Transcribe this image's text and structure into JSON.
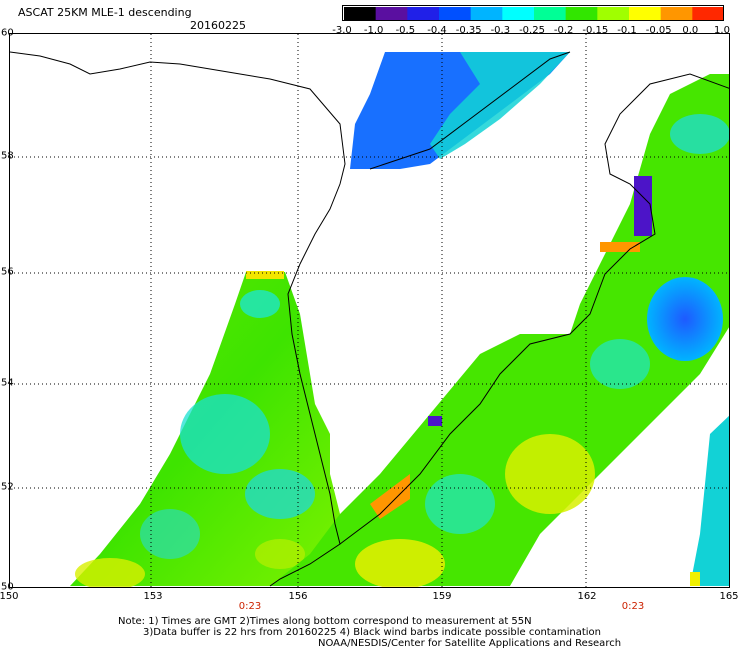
{
  "header": {
    "title": "ASCAT 25KM MLE-1 descending",
    "date": "20160225"
  },
  "colorbar": {
    "labels": [
      "-3.0",
      "-1.0",
      "-0.5",
      "-0.4",
      "-0.35",
      "-0.3",
      "-0.25",
      "-0.2",
      "-0.15",
      "-0.1",
      "-0.05",
      "0.0",
      "1.0"
    ],
    "colors": [
      "#000000",
      "#5a0fa0",
      "#2020e8",
      "#0050ff",
      "#00b4ff",
      "#00ffff",
      "#00ff96",
      "#32e600",
      "#a0ff00",
      "#ffff00",
      "#ff9600",
      "#ff2800"
    ]
  },
  "map": {
    "y_labels": [
      "60",
      "58",
      "56",
      "54",
      "52",
      "50"
    ],
    "x_labels": [
      "150",
      "153",
      "156",
      "159",
      "162",
      "165"
    ],
    "time_labels": [
      "0:23",
      "0:23"
    ],
    "lat_range": [
      50,
      60
    ],
    "lon_range": [
      150,
      165
    ],
    "colors": {
      "land_outline": "#000000",
      "grid": "#000000"
    }
  },
  "notes": {
    "line1": "Note: 1) Times are GMT 2)Times along bottom correspond to measurement at 55N",
    "line2": "3)Data buffer is 22 hrs from 20160225 4) Black wind barbs indicate possible contamination",
    "line3": "NOAA/NESDIS/Center for Satellite Applications and Research"
  }
}
